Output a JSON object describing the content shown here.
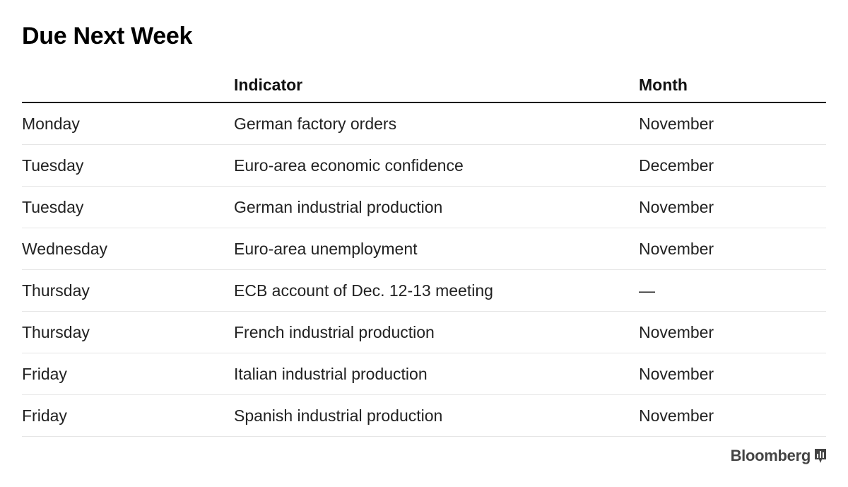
{
  "chart_data": {
    "type": "table",
    "title": "Due Next Week",
    "columns": [
      "",
      "Indicator",
      "Month"
    ],
    "rows": [
      [
        "Monday",
        "German factory orders",
        "November"
      ],
      [
        "Tuesday",
        "Euro-area economic confidence",
        "December"
      ],
      [
        "Tuesday",
        "German industrial production",
        "November"
      ],
      [
        "Wednesday",
        "Euro-area unemployment",
        "November"
      ],
      [
        "Thursday",
        "ECB account of Dec. 12-13 meeting",
        "—"
      ],
      [
        "Thursday",
        "French industrial production",
        "November"
      ],
      [
        "Friday",
        "Italian industrial production",
        "November"
      ],
      [
        "Friday",
        "Spanish industrial production",
        "November"
      ]
    ]
  },
  "source": {
    "brand": "Bloomberg",
    "logo_icon": "bloomberg-chart-icon"
  },
  "colors": {
    "text": "#1a1a1a",
    "header_rule": "#1a1a1a",
    "row_rule": "#e6e6e6",
    "brand": "#444444"
  }
}
